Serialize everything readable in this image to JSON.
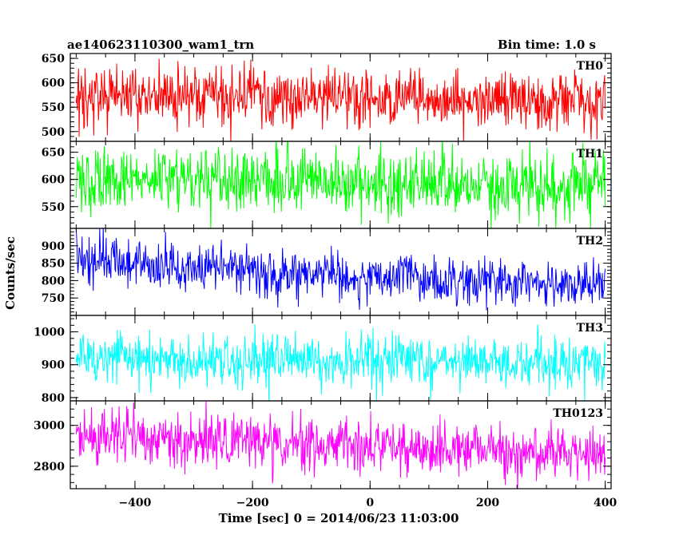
{
  "header": {
    "title": "ae140623110300_wam1_trn",
    "bin_time": "Bin time: 1.0 s"
  },
  "chart_data": {
    "type": "line",
    "title": "ae140623110300_wam1_trn",
    "xlabel": "Time [sec] 0 = 2014/06/23 11:03:00",
    "ylabel": "Counts/sec",
    "xlim": [
      -510,
      410
    ],
    "x_ticks": [
      -400,
      -200,
      0,
      200,
      400
    ],
    "x_range": [
      -500,
      400
    ],
    "bin_time_s": 1.0,
    "panels": [
      {
        "name": "TH0",
        "color": "#ff0000",
        "ylim": [
          480,
          660
        ],
        "y_ticks": [
          500,
          550,
          600,
          650
        ],
        "trend": [
          [
            -500,
            575
          ],
          [
            400,
            560
          ]
        ],
        "noise_sd": 32
      },
      {
        "name": "TH1",
        "color": "#00ff00",
        "ylim": [
          510,
          670
        ],
        "y_ticks": [
          550,
          600,
          650
        ],
        "trend": [
          [
            -500,
            605
          ],
          [
            400,
            585
          ]
        ],
        "noise_sd": 30
      },
      {
        "name": "TH2",
        "color": "#0000ff",
        "ylim": [
          700,
          950
        ],
        "y_ticks": [
          750,
          800,
          850,
          900
        ],
        "trend": [
          [
            -500,
            855
          ],
          [
            400,
            785
          ]
        ],
        "noise_sd": 35
      },
      {
        "name": "TH3",
        "color": "#00ffff",
        "ylim": [
          790,
          1050
        ],
        "y_ticks": [
          800,
          900,
          1000
        ],
        "trend": [
          [
            -500,
            920
          ],
          [
            400,
            905
          ]
        ],
        "noise_sd": 40
      },
      {
        "name": "TH0123",
        "color": "#ff00ff",
        "ylim": [
          2690,
          3120
        ],
        "y_ticks": [
          2800,
          3000
        ],
        "trend": [
          [
            -500,
            2955
          ],
          [
            400,
            2855
          ]
        ],
        "noise_sd": 65
      }
    ]
  }
}
